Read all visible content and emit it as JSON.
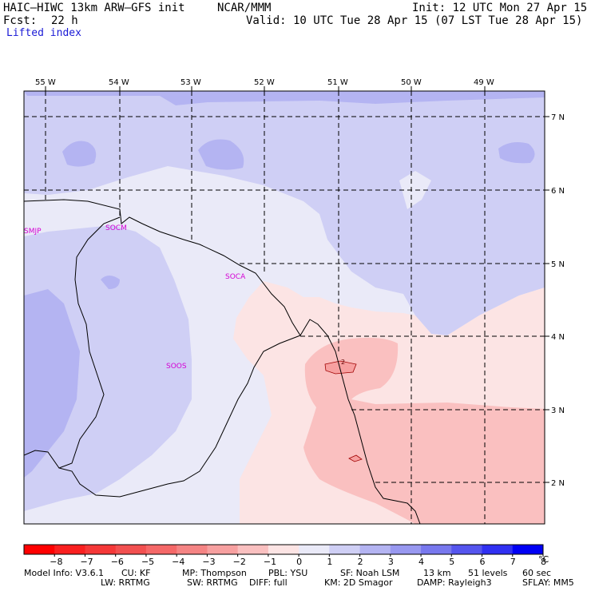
{
  "header": {
    "model": "HAIC–HIWC 13km ARW–GFS init",
    "center": "NCAR/MMM",
    "init": "Init: 12 UTC Mon 27 Apr 15",
    "fcst_label": "Fcst:",
    "fcst_value": "22 h",
    "valid": "Valid: 10 UTC Tue 28 Apr 15 (07 LST Tue 28 Apr 15)",
    "field": "Lifted index"
  },
  "map": {
    "lon_labels": [
      "55 W",
      "54 W",
      "53 W",
      "52 W",
      "51 W",
      "50 W",
      "49 W"
    ],
    "lat_labels": [
      "7 N",
      "6 N",
      "5 N",
      "4 N",
      "3 N",
      "2 N"
    ],
    "stations": [
      "SMJP",
      "SOCM",
      "SOCA",
      "SOOS"
    ],
    "contour_label": "2"
  },
  "colorbar": {
    "ticks": [
      "−8",
      "−7",
      "−6",
      "−5",
      "−4",
      "−3",
      "−2",
      "−1",
      "0",
      "1",
      "2",
      "3",
      "4",
      "5",
      "6",
      "7",
      "8"
    ],
    "unit": "°C",
    "colors": [
      "#ff0000",
      "#fa2020",
      "#f53838",
      "#f25050",
      "#f56868",
      "#f58484",
      "#f7a0a0",
      "#fac0c0",
      "#fce4e4",
      "#eaeaf8",
      "#cfcff5",
      "#b4b4f2",
      "#9898f0",
      "#7878ee",
      "#5555ee",
      "#3030f2",
      "#0000f5"
    ]
  },
  "footer": {
    "line1": [
      "Model Info: V3.6.1",
      "CU: KF",
      "MP: Thompson",
      "PBL: YSU",
      "SF: Noah LSM",
      "13 km",
      "51 levels",
      "60 sec"
    ],
    "line2": [
      "LW: RRTMG",
      "SW: RRTMG",
      "DIFF: full",
      "KM: 2D Smagor",
      "DAMP: Rayleigh3",
      "SFLAY: MM5"
    ]
  }
}
